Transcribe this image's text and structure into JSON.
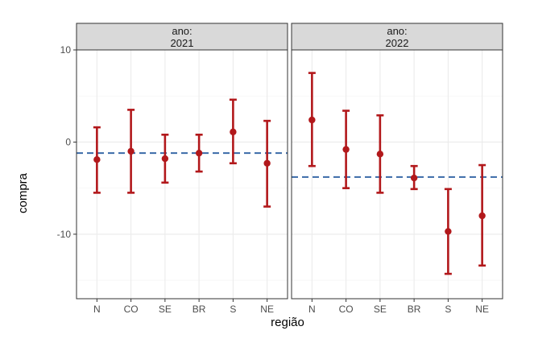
{
  "chart_data": {
    "type": "scatter",
    "subtype": "point-with-errorbars, faceted",
    "xlabel": "região",
    "ylabel": "compra",
    "categories": [
      "N",
      "CO",
      "SE",
      "BR",
      "S",
      "NE"
    ],
    "ylim": [
      -17,
      10
    ],
    "yticks": [
      10,
      0,
      -10
    ],
    "ytick_labels": [
      "10",
      "0",
      "-10"
    ],
    "grid": true,
    "legend": "none",
    "colors": {
      "point": "#b2181b",
      "reference_line": "#3a6aa8",
      "strip_fill": "#d9d9d9",
      "panel_border": "#333333",
      "grid": "#ebebeb"
    },
    "facets": [
      {
        "strip_label_line1": "ano:",
        "strip_label_line2": "2021",
        "reference_value": -1.2,
        "points": [
          {
            "category": "N",
            "value": -1.9,
            "lower": -5.5,
            "upper": 1.6
          },
          {
            "category": "CO",
            "value": -1.0,
            "lower": -5.5,
            "upper": 3.5
          },
          {
            "category": "SE",
            "value": -1.8,
            "lower": -4.4,
            "upper": 0.8
          },
          {
            "category": "BR",
            "value": -1.2,
            "lower": -3.2,
            "upper": 0.8
          },
          {
            "category": "S",
            "value": 1.1,
            "lower": -2.3,
            "upper": 4.6
          },
          {
            "category": "NE",
            "value": -2.3,
            "lower": -7.0,
            "upper": 2.3
          }
        ]
      },
      {
        "strip_label_line1": "ano:",
        "strip_label_line2": "2022",
        "reference_value": -3.8,
        "points": [
          {
            "category": "N",
            "value": 2.4,
            "lower": -2.6,
            "upper": 7.5
          },
          {
            "category": "CO",
            "value": -0.8,
            "lower": -5.0,
            "upper": 3.4
          },
          {
            "category": "SE",
            "value": -1.3,
            "lower": -5.5,
            "upper": 2.9
          },
          {
            "category": "BR",
            "value": -3.9,
            "lower": -5.1,
            "upper": -2.6
          },
          {
            "category": "S",
            "value": -9.7,
            "lower": -14.3,
            "upper": -5.1
          },
          {
            "category": "NE",
            "value": -8.0,
            "lower": -13.4,
            "upper": -2.5
          }
        ]
      }
    ]
  }
}
